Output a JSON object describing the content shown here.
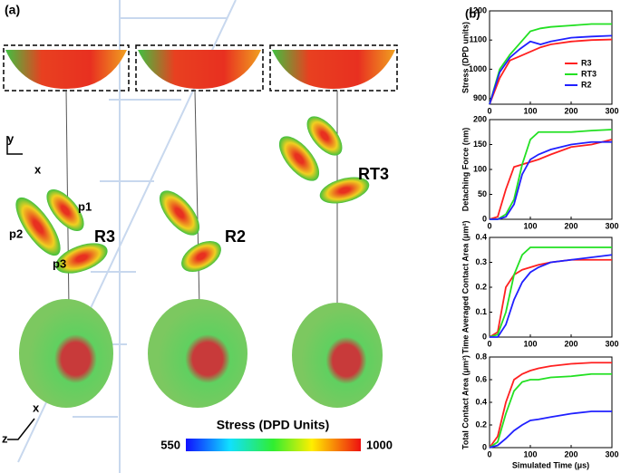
{
  "panel_a": {
    "label": "(a)",
    "axes_top": {
      "y": "y",
      "x": "x"
    },
    "axes_bottom": {
      "x": "x",
      "z": "z"
    },
    "particles": [
      "p1",
      "p2",
      "p3"
    ],
    "configs": [
      "R3",
      "R2",
      "RT3"
    ],
    "colorbar": {
      "title": "Stress (DPD Units)",
      "min": 550,
      "max": 1000
    }
  },
  "panel_b": {
    "label": "(b)"
  },
  "chart_data": [
    {
      "type": "line",
      "ylabel": "Stress (DPD units)",
      "legend": "upper-right",
      "x": [
        0,
        25,
        50,
        75,
        100,
        125,
        150,
        200,
        250,
        300
      ],
      "series": [
        {
          "name": "R3",
          "color": "#ff2020",
          "values": [
            880,
            970,
            1030,
            1045,
            1060,
            1075,
            1085,
            1095,
            1100,
            1102
          ]
        },
        {
          "name": "RT3",
          "color": "#22e022",
          "values": [
            880,
            1000,
            1050,
            1090,
            1130,
            1140,
            1145,
            1150,
            1155,
            1155
          ]
        },
        {
          "name": "R2",
          "color": "#2020ff",
          "values": [
            880,
            990,
            1040,
            1070,
            1095,
            1085,
            1095,
            1108,
            1112,
            1115
          ]
        }
      ],
      "xlim": [
        0,
        300
      ],
      "xticks": [
        0,
        100,
        200,
        300
      ],
      "ylim": [
        880,
        1200
      ],
      "yticks": [
        900,
        1000,
        1100,
        1200
      ]
    },
    {
      "type": "line",
      "ylabel": "Detaching Force (nm)",
      "x": [
        0,
        20,
        40,
        60,
        80,
        100,
        120,
        150,
        200,
        250,
        300
      ],
      "series": [
        {
          "color": "#ff2020",
          "values": [
            0,
            5,
            60,
            105,
            110,
            115,
            120,
            130,
            145,
            150,
            160
          ]
        },
        {
          "color": "#22e022",
          "values": [
            0,
            0,
            10,
            40,
            110,
            160,
            175,
            175,
            175,
            178,
            180
          ]
        },
        {
          "color": "#2020ff",
          "values": [
            0,
            0,
            5,
            30,
            90,
            120,
            130,
            140,
            150,
            155,
            155
          ]
        }
      ],
      "xlim": [
        0,
        300
      ],
      "xticks": [
        0,
        100,
        200,
        300
      ],
      "ylim": [
        0,
        200
      ],
      "yticks": [
        0,
        50,
        100,
        150,
        200
      ]
    },
    {
      "type": "line",
      "ylabel": "Time Averaged Contact Area (μm²)",
      "x": [
        0,
        20,
        40,
        60,
        80,
        100,
        120,
        150,
        200,
        250,
        300
      ],
      "series": [
        {
          "color": "#ff2020",
          "values": [
            0,
            0.02,
            0.2,
            0.25,
            0.27,
            0.28,
            0.29,
            0.3,
            0.31,
            0.31,
            0.31
          ]
        },
        {
          "color": "#22e022",
          "values": [
            0,
            0.01,
            0.1,
            0.25,
            0.33,
            0.36,
            0.36,
            0.36,
            0.36,
            0.36,
            0.36
          ]
        },
        {
          "color": "#2020ff",
          "values": [
            0,
            0,
            0.05,
            0.15,
            0.22,
            0.26,
            0.28,
            0.3,
            0.31,
            0.32,
            0.33
          ]
        }
      ],
      "xlim": [
        0,
        300
      ],
      "xticks": [
        0,
        100,
        200,
        300
      ],
      "ylim": [
        0,
        0.4
      ],
      "yticks": [
        0,
        0.1,
        0.2,
        0.3,
        0.4
      ]
    },
    {
      "type": "line",
      "ylabel": "Total Contact Area (μm²)",
      "xlabel": "Simulated Time (μs)",
      "x": [
        0,
        20,
        40,
        60,
        80,
        100,
        120,
        150,
        200,
        250,
        300
      ],
      "series": [
        {
          "color": "#ff2020",
          "values": [
            0,
            0.1,
            0.4,
            0.6,
            0.65,
            0.68,
            0.7,
            0.72,
            0.74,
            0.75,
            0.75
          ]
        },
        {
          "color": "#22e022",
          "values": [
            0,
            0.05,
            0.3,
            0.5,
            0.58,
            0.6,
            0.6,
            0.62,
            0.63,
            0.65,
            0.65
          ]
        },
        {
          "color": "#2020ff",
          "values": [
            0,
            0.02,
            0.08,
            0.15,
            0.2,
            0.24,
            0.25,
            0.27,
            0.3,
            0.32,
            0.32
          ]
        }
      ],
      "xlim": [
        0,
        300
      ],
      "xticks": [
        0,
        100,
        200,
        300
      ],
      "ylim": [
        0,
        0.8
      ],
      "yticks": [
        0,
        0.2,
        0.4,
        0.6,
        0.8
      ]
    }
  ]
}
